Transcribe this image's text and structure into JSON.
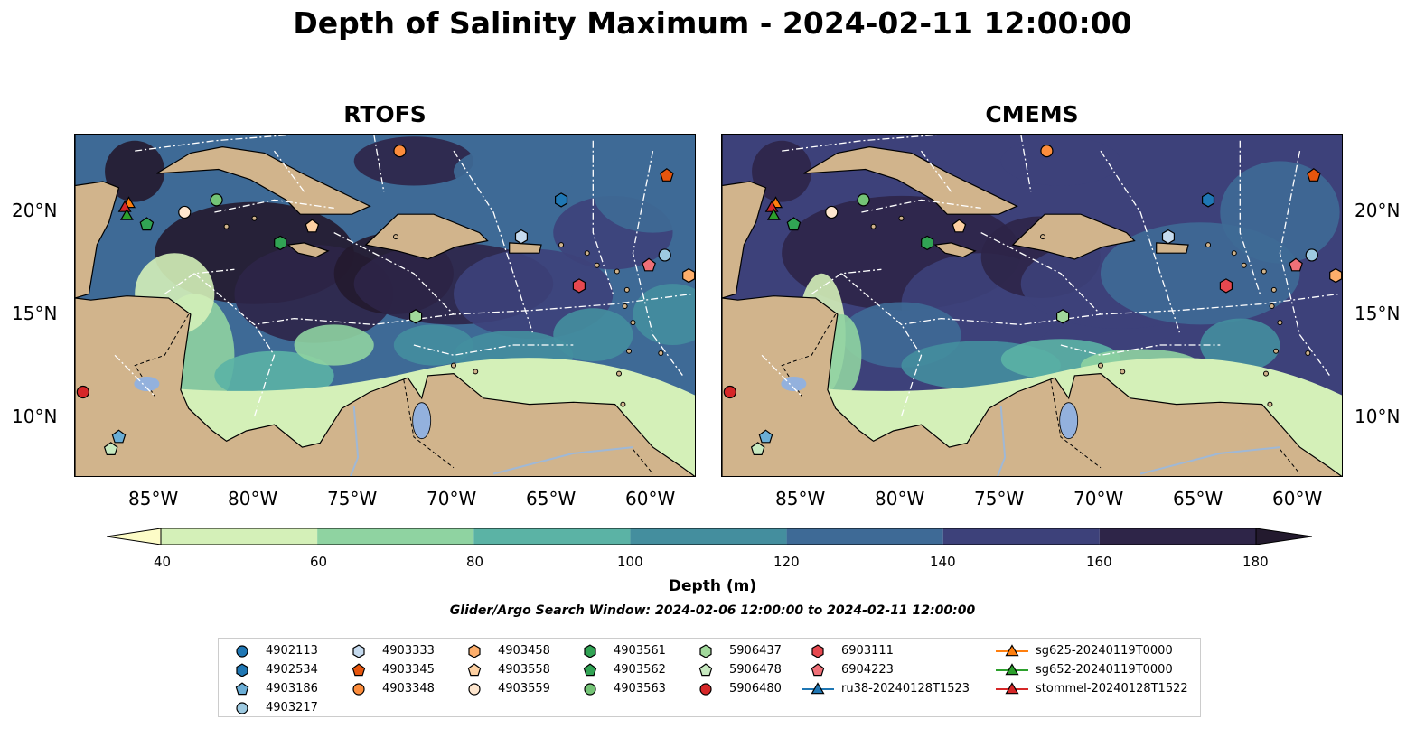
{
  "title": "Depth of Salinity Maximum - 2024-02-11 12:00:00",
  "panels": [
    {
      "name": "RTOFS"
    },
    {
      "name": "CMEMS"
    }
  ],
  "lon_ticks": [
    "85°W",
    "80°W",
    "75°W",
    "70°W",
    "65°W",
    "60°W"
  ],
  "lat_ticks": [
    "20°N",
    "15°N",
    "10°N"
  ],
  "colorbar": {
    "label": "Depth (m)",
    "ticks": [
      "40",
      "60",
      "80",
      "100",
      "120",
      "140",
      "160",
      "180"
    ],
    "colors": [
      "#fdfcc7",
      "#d4f0b8",
      "#8fd3a1",
      "#5bb3a5",
      "#448e9e",
      "#3e6a96",
      "#3d417a",
      "#2e2548",
      "#231a2e"
    ],
    "extend": "both"
  },
  "search_window": "Glider/Argo Search Window: 2024-02-06 12:00:00 to 2024-02-11 12:00:00",
  "colors": {
    "land": "#d1b48c",
    "lake": "#93b1dd",
    "river": "#9fb8d6",
    "bound": "#ffffff"
  },
  "legend": [
    {
      "label": "4902113",
      "marker": "circle",
      "color": "#1f77b4"
    },
    {
      "label": "4902534",
      "marker": "hexagon",
      "color": "#1f77b4"
    },
    {
      "label": "4903186",
      "marker": "pentagon",
      "color": "#6baed6"
    },
    {
      "label": "4903217",
      "marker": "circle",
      "color": "#9ecae1"
    },
    {
      "label": "4903333",
      "marker": "hexagon",
      "color": "#c6dbef"
    },
    {
      "label": "4903345",
      "marker": "pentagon",
      "color": "#e6550d"
    },
    {
      "label": "4903348",
      "marker": "circle",
      "color": "#fd8d3c"
    },
    {
      "label": "4903458",
      "marker": "hexagon",
      "color": "#fdae6b"
    },
    {
      "label": "4903558",
      "marker": "pentagon",
      "color": "#fdd0a2"
    },
    {
      "label": "4903559",
      "marker": "circle",
      "color": "#fee6ce"
    },
    {
      "label": "4903561",
      "marker": "hexagon",
      "color": "#31a354"
    },
    {
      "label": "4903562",
      "marker": "pentagon",
      "color": "#31a354"
    },
    {
      "label": "4903563",
      "marker": "circle",
      "color": "#74c476"
    },
    {
      "label": "5906437",
      "marker": "hexagon",
      "color": "#a1d99b"
    },
    {
      "label": "5906478",
      "marker": "pentagon",
      "color": "#c7e9c0"
    },
    {
      "label": "5906480",
      "marker": "circle",
      "color": "#d62728"
    },
    {
      "label": "6903111",
      "marker": "hexagon",
      "color": "#e6484f"
    },
    {
      "label": "6904223",
      "marker": "pentagon",
      "color": "#f07078"
    },
    {
      "label": "ru38-20240128T1523",
      "marker": "triangle-line",
      "color": "#1f77b4"
    },
    {
      "label": "sg625-20240119T0000",
      "marker": "triangle-line",
      "color": "#ff7f0e"
    },
    {
      "label": "sg652-20240119T0000",
      "marker": "triangle-line",
      "color": "#2ca02c"
    },
    {
      "label": "stommel-20240128T1522",
      "marker": "triangle-line",
      "color": "#d62728"
    }
  ],
  "floats": [
    {
      "id": "4903348",
      "lon": -72.7,
      "lat": 23.0
    },
    {
      "id": "4903345",
      "lon": -59.3,
      "lat": 21.8
    },
    {
      "id": "4903563",
      "lon": -81.9,
      "lat": 20.6
    },
    {
      "id": "4902534",
      "lon": -64.6,
      "lat": 20.6
    },
    {
      "id": "4903559",
      "lon": -83.5,
      "lat": 20.0
    },
    {
      "id": "4903562",
      "lon": -85.4,
      "lat": 19.4
    },
    {
      "id": "4903558",
      "lon": -77.1,
      "lat": 19.3
    },
    {
      "id": "4903333",
      "lon": -66.6,
      "lat": 18.8
    },
    {
      "id": "4903561",
      "lon": -78.7,
      "lat": 18.5
    },
    {
      "id": "4903217",
      "lon": -59.4,
      "lat": 17.9
    },
    {
      "id": "6904223",
      "lon": -60.2,
      "lat": 17.4
    },
    {
      "id": "4903458",
      "lon": -58.2,
      "lat": 16.9
    },
    {
      "id": "6903111",
      "lon": -63.7,
      "lat": 16.4
    },
    {
      "id": "5906437",
      "lon": -71.9,
      "lat": 14.9
    },
    {
      "id": "5906480",
      "lon": -88.6,
      "lat": 11.2
    },
    {
      "id": "4903186",
      "lon": -86.8,
      "lat": 9.0
    },
    {
      "id": "5906478",
      "lon": -87.2,
      "lat": 8.4
    }
  ],
  "gliders": [
    {
      "id": "sg625-20240119T0000",
      "lon": -86.3,
      "lat": 20.4
    },
    {
      "id": "stommel-20240128T1522",
      "lon": -86.5,
      "lat": 20.2
    },
    {
      "id": "sg652-20240119T0000",
      "lon": -86.4,
      "lat": 19.8
    }
  ]
}
